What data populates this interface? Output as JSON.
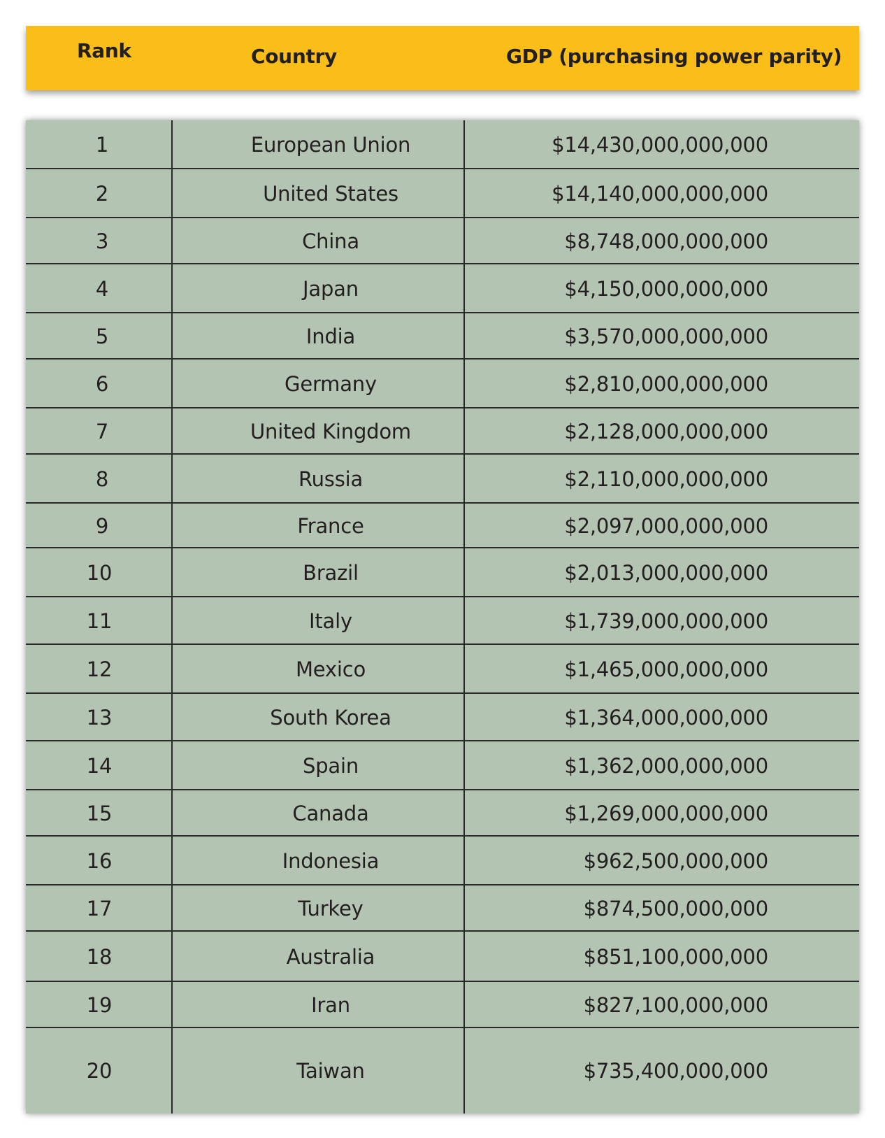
{
  "header": {
    "rank": "Rank",
    "country": "Country",
    "gdp": "GDP (purchasing power parity)"
  },
  "rows": [
    {
      "rank": "1",
      "country": "European Union",
      "gdp": "$14,430,000,000,000"
    },
    {
      "rank": "2",
      "country": "United States",
      "gdp": "$14,140,000,000,000"
    },
    {
      "rank": "3",
      "country": "China",
      "gdp": "$8,748,000,000,000"
    },
    {
      "rank": "4",
      "country": "Japan",
      "gdp": "$4,150,000,000,000"
    },
    {
      "rank": "5",
      "country": "India",
      "gdp": "$3,570,000,000,000"
    },
    {
      "rank": "6",
      "country": "Germany",
      "gdp": "$2,810,000,000,000"
    },
    {
      "rank": "7",
      "country": "United Kingdom",
      "gdp": "$2,128,000,000,000"
    },
    {
      "rank": "8",
      "country": "Russia",
      "gdp": "$2,110,000,000,000"
    },
    {
      "rank": "9",
      "country": "France",
      "gdp": "$2,097,000,000,000"
    },
    {
      "rank": "10",
      "country": "Brazil",
      "gdp": "$2,013,000,000,000"
    },
    {
      "rank": "11",
      "country": "Italy",
      "gdp": "$1,739,000,000,000"
    },
    {
      "rank": "12",
      "country": "Mexico",
      "gdp": "$1,465,000,000,000"
    },
    {
      "rank": "13",
      "country": "South Korea",
      "gdp": "$1,364,000,000,000"
    },
    {
      "rank": "14",
      "country": "Spain",
      "gdp": "$1,362,000,000,000"
    },
    {
      "rank": "15",
      "country": "Canada",
      "gdp": "$1,269,000,000,000"
    },
    {
      "rank": "16",
      "country": "Indonesia",
      "gdp": "$962,500,000,000"
    },
    {
      "rank": "17",
      "country": "Turkey",
      "gdp": "$874,500,000,000"
    },
    {
      "rank": "18",
      "country": "Australia",
      "gdp": "$851,100,000,000"
    },
    {
      "rank": "19",
      "country": "Iran",
      "gdp": "$827,100,000,000"
    },
    {
      "rank": "20",
      "country": "Taiwan",
      "gdp": "$735,400,000,000"
    }
  ]
}
